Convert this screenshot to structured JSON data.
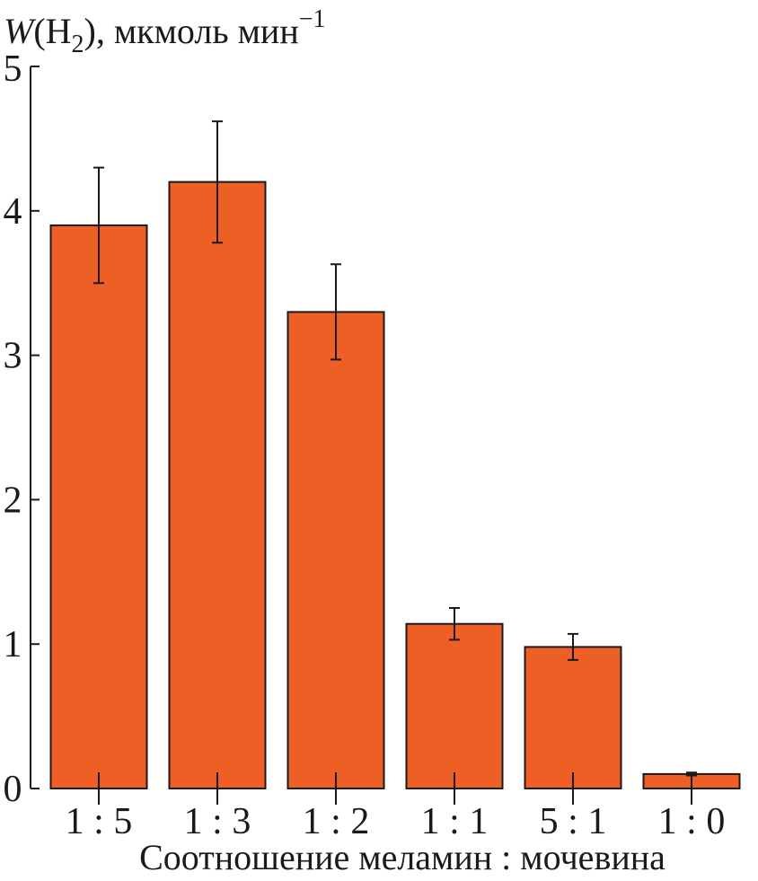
{
  "chart_data": {
    "type": "bar",
    "ylabel": {
      "symbol": "W",
      "open": "(H",
      "subscript": "2",
      "close": "), мкмоль мин",
      "superscript": "−1"
    },
    "xlabel": "Соотношение меламин : мочевина",
    "categories": [
      "1 : 5",
      "1 : 3",
      "1 : 2",
      "1 : 1",
      "5 : 1",
      "1 : 0"
    ],
    "values": [
      3.9,
      4.2,
      3.3,
      1.14,
      0.98,
      0.1
    ],
    "errors": [
      0.4,
      0.42,
      0.33,
      0.11,
      0.09,
      0.01
    ],
    "ylim": [
      0,
      5
    ],
    "yticks": [
      0,
      1,
      2,
      3,
      4,
      5
    ],
    "grid": false,
    "bar_color": "#EE5F26"
  }
}
